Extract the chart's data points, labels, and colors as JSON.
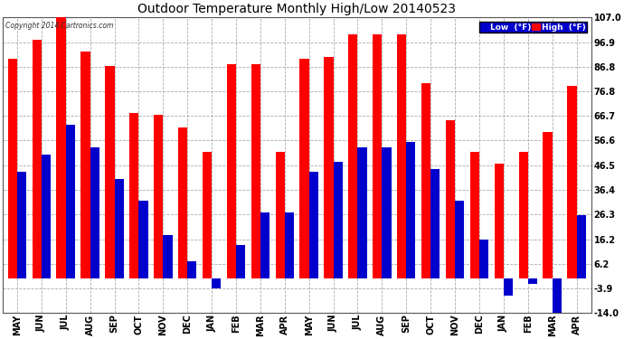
{
  "title": "Outdoor Temperature Monthly High/Low 20140523",
  "copyright": "Copyright 2014 Cartronics.com",
  "months": [
    "MAY",
    "JUN",
    "JUL",
    "AUG",
    "SEP",
    "OCT",
    "NOV",
    "DEC",
    "JAN",
    "FEB",
    "MAR",
    "APR",
    "MAY",
    "JUN",
    "JUL",
    "AUG",
    "SEP",
    "OCT",
    "NOV",
    "DEC",
    "JAN",
    "FEB",
    "MAR",
    "APR"
  ],
  "high": [
    90,
    98,
    107,
    93,
    87,
    68,
    67,
    62,
    52,
    88,
    88,
    52,
    90,
    91,
    100,
    100,
    100,
    80,
    65,
    52,
    47,
    52,
    60,
    79
  ],
  "low": [
    44,
    51,
    63,
    54,
    41,
    32,
    18,
    7,
    -4,
    14,
    27,
    27,
    44,
    48,
    54,
    54,
    56,
    45,
    32,
    16,
    -7,
    -2,
    -14,
    26
  ],
  "ylim": [
    -14.0,
    107.0
  ],
  "yticks": [
    -14.0,
    -3.9,
    6.2,
    16.2,
    26.3,
    36.4,
    46.5,
    56.6,
    66.7,
    76.8,
    86.8,
    96.9,
    107.0
  ],
  "bar_width": 0.38,
  "high_color": "#ff0000",
  "low_color": "#0000cc",
  "bg_color": "#ffffff",
  "grid_color": "#aaaaaa",
  "title_fontsize": 10,
  "tick_fontsize": 7,
  "legend_low_label": "Low  (°F)",
  "legend_high_label": "High  (°F)",
  "legend_bg": "#8888ff",
  "legend_high_bg": "#ff0000"
}
